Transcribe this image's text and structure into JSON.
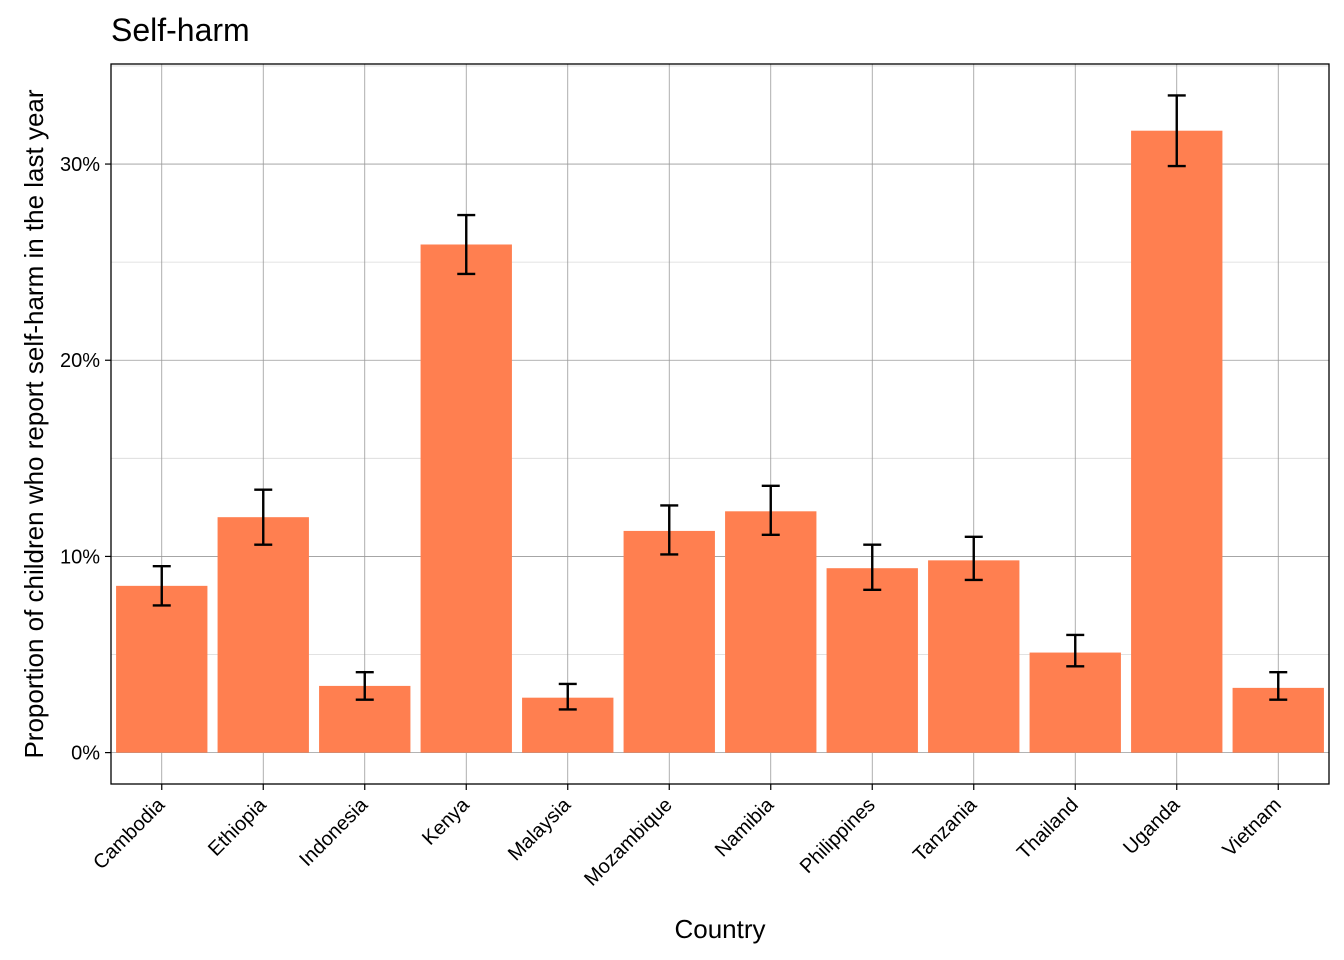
{
  "chart_data": {
    "type": "bar",
    "title": "Self-harm",
    "xlabel": "Country",
    "ylabel": "Proportion of children who report self-harm in the last year",
    "categories": [
      "Cambodia",
      "Ethiopia",
      "Indonesia",
      "Kenya",
      "Malaysia",
      "Mozambique",
      "Namibia",
      "Philippines",
      "Tanzania",
      "Thailand",
      "Uganda",
      "Vietnam"
    ],
    "values": [
      8.5,
      12.0,
      3.4,
      25.9,
      2.8,
      11.3,
      12.3,
      9.4,
      9.8,
      5.1,
      31.7,
      3.3
    ],
    "error_low": [
      7.5,
      10.6,
      2.7,
      24.4,
      2.2,
      10.1,
      11.1,
      8.3,
      8.8,
      4.4,
      29.9,
      2.7
    ],
    "error_high": [
      9.5,
      13.4,
      4.1,
      27.4,
      3.5,
      12.6,
      13.6,
      10.6,
      11.0,
      6.0,
      33.5,
      4.1
    ],
    "yticks": [
      0,
      10,
      20,
      30
    ],
    "ytick_labels": [
      "0%",
      "10%",
      "20%",
      "30%"
    ],
    "ylim": [
      -1.6,
      35.1
    ],
    "y_unit": "%",
    "grid": true,
    "legend": "none",
    "colors": {
      "bar": "#FF7F50",
      "error_bar": "#000000",
      "grid_major": "#9a9a9a",
      "grid_minor": "#d9d9d9",
      "panel_border": "#000000"
    }
  }
}
